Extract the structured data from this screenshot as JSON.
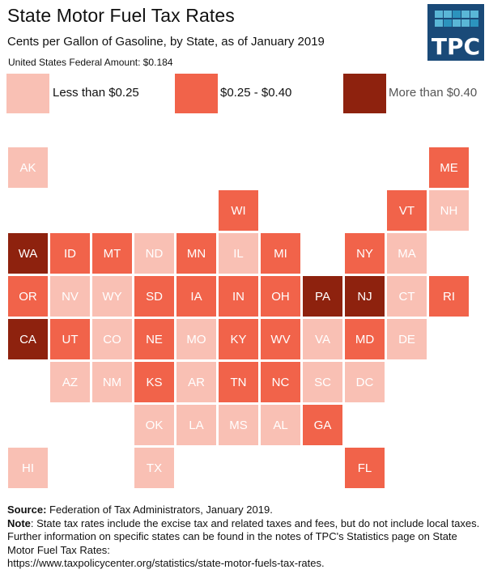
{
  "header": {
    "title": "State Motor Fuel Tax Rates",
    "subtitle": "Cents per Gallon of Gasoline, by State, as of January 2019",
    "federal_amount": "United States Federal Amount: $0.184",
    "logo_text": "TPC"
  },
  "colors": {
    "low": "#f9c0b4",
    "mid": "#f1634a",
    "high": "#8e220e",
    "logo_bg": "#1a4a78",
    "logo_sq_light": "#5ab6d6",
    "logo_sq_dark": "#2c93bd"
  },
  "legend": [
    {
      "key": "low",
      "label": "Less than $0.25"
    },
    {
      "key": "mid",
      "label": "$0.25 - $0.40"
    },
    {
      "key": "high",
      "label": "More than $0.40"
    }
  ],
  "chart_data": {
    "type": "heatmap",
    "title": "State Motor Fuel Tax Rates",
    "subtitle": "Cents per Gallon of Gasoline, by State, as of January 2019",
    "categories": [
      "Less than $0.25",
      "$0.25 - $0.40",
      "More than $0.40"
    ],
    "states": [
      {
        "state": "AK",
        "row": 0,
        "col": 0,
        "category": "low"
      },
      {
        "state": "ME",
        "row": 0,
        "col": 10,
        "category": "mid"
      },
      {
        "state": "WI",
        "row": 1,
        "col": 5,
        "category": "mid"
      },
      {
        "state": "VT",
        "row": 1,
        "col": 9,
        "category": "mid"
      },
      {
        "state": "NH",
        "row": 1,
        "col": 10,
        "category": "low"
      },
      {
        "state": "WA",
        "row": 2,
        "col": 0,
        "category": "high"
      },
      {
        "state": "ID",
        "row": 2,
        "col": 1,
        "category": "mid"
      },
      {
        "state": "MT",
        "row": 2,
        "col": 2,
        "category": "mid"
      },
      {
        "state": "ND",
        "row": 2,
        "col": 3,
        "category": "low"
      },
      {
        "state": "MN",
        "row": 2,
        "col": 4,
        "category": "mid"
      },
      {
        "state": "IL",
        "row": 2,
        "col": 5,
        "category": "low"
      },
      {
        "state": "MI",
        "row": 2,
        "col": 6,
        "category": "mid"
      },
      {
        "state": "NY",
        "row": 2,
        "col": 8,
        "category": "mid"
      },
      {
        "state": "MA",
        "row": 2,
        "col": 9,
        "category": "low"
      },
      {
        "state": "OR",
        "row": 3,
        "col": 0,
        "category": "mid"
      },
      {
        "state": "NV",
        "row": 3,
        "col": 1,
        "category": "low"
      },
      {
        "state": "WY",
        "row": 3,
        "col": 2,
        "category": "low"
      },
      {
        "state": "SD",
        "row": 3,
        "col": 3,
        "category": "mid"
      },
      {
        "state": "IA",
        "row": 3,
        "col": 4,
        "category": "mid"
      },
      {
        "state": "IN",
        "row": 3,
        "col": 5,
        "category": "mid"
      },
      {
        "state": "OH",
        "row": 3,
        "col": 6,
        "category": "mid"
      },
      {
        "state": "PA",
        "row": 3,
        "col": 7,
        "category": "high"
      },
      {
        "state": "NJ",
        "row": 3,
        "col": 8,
        "category": "high"
      },
      {
        "state": "CT",
        "row": 3,
        "col": 9,
        "category": "low"
      },
      {
        "state": "RI",
        "row": 3,
        "col": 10,
        "category": "mid"
      },
      {
        "state": "CA",
        "row": 4,
        "col": 0,
        "category": "high"
      },
      {
        "state": "UT",
        "row": 4,
        "col": 1,
        "category": "mid"
      },
      {
        "state": "CO",
        "row": 4,
        "col": 2,
        "category": "low"
      },
      {
        "state": "NE",
        "row": 4,
        "col": 3,
        "category": "mid"
      },
      {
        "state": "MO",
        "row": 4,
        "col": 4,
        "category": "low"
      },
      {
        "state": "KY",
        "row": 4,
        "col": 5,
        "category": "mid"
      },
      {
        "state": "WV",
        "row": 4,
        "col": 6,
        "category": "mid"
      },
      {
        "state": "VA",
        "row": 4,
        "col": 7,
        "category": "low"
      },
      {
        "state": "MD",
        "row": 4,
        "col": 8,
        "category": "mid"
      },
      {
        "state": "DE",
        "row": 4,
        "col": 9,
        "category": "low"
      },
      {
        "state": "AZ",
        "row": 5,
        "col": 1,
        "category": "low"
      },
      {
        "state": "NM",
        "row": 5,
        "col": 2,
        "category": "low"
      },
      {
        "state": "KS",
        "row": 5,
        "col": 3,
        "category": "mid"
      },
      {
        "state": "AR",
        "row": 5,
        "col": 4,
        "category": "low"
      },
      {
        "state": "TN",
        "row": 5,
        "col": 5,
        "category": "mid"
      },
      {
        "state": "NC",
        "row": 5,
        "col": 6,
        "category": "mid"
      },
      {
        "state": "SC",
        "row": 5,
        "col": 7,
        "category": "low"
      },
      {
        "state": "DC",
        "row": 5,
        "col": 8,
        "category": "low"
      },
      {
        "state": "OK",
        "row": 6,
        "col": 3,
        "category": "low"
      },
      {
        "state": "LA",
        "row": 6,
        "col": 4,
        "category": "low"
      },
      {
        "state": "MS",
        "row": 6,
        "col": 5,
        "category": "low"
      },
      {
        "state": "AL",
        "row": 6,
        "col": 6,
        "category": "low"
      },
      {
        "state": "GA",
        "row": 6,
        "col": 7,
        "category": "mid"
      },
      {
        "state": "HI",
        "row": 7,
        "col": 0,
        "category": "low"
      },
      {
        "state": "TX",
        "row": 7,
        "col": 3,
        "category": "low"
      },
      {
        "state": "FL",
        "row": 7,
        "col": 8,
        "category": "mid"
      }
    ]
  },
  "footer": {
    "source_label": "Source:",
    "source_text": " Federation of Tax Administrators, January 2019.",
    "note_label": "Note",
    "note_text": ": State tax rates include the excise tax and related taxes and fees, but do not include local taxes. Further information on specific states can be found in the notes of TPC's Statistics page on State Motor Fuel Tax Rates:",
    "url": "https://www.taxpolicycenter.org/statistics/state-motor-fuels-tax-rates."
  }
}
